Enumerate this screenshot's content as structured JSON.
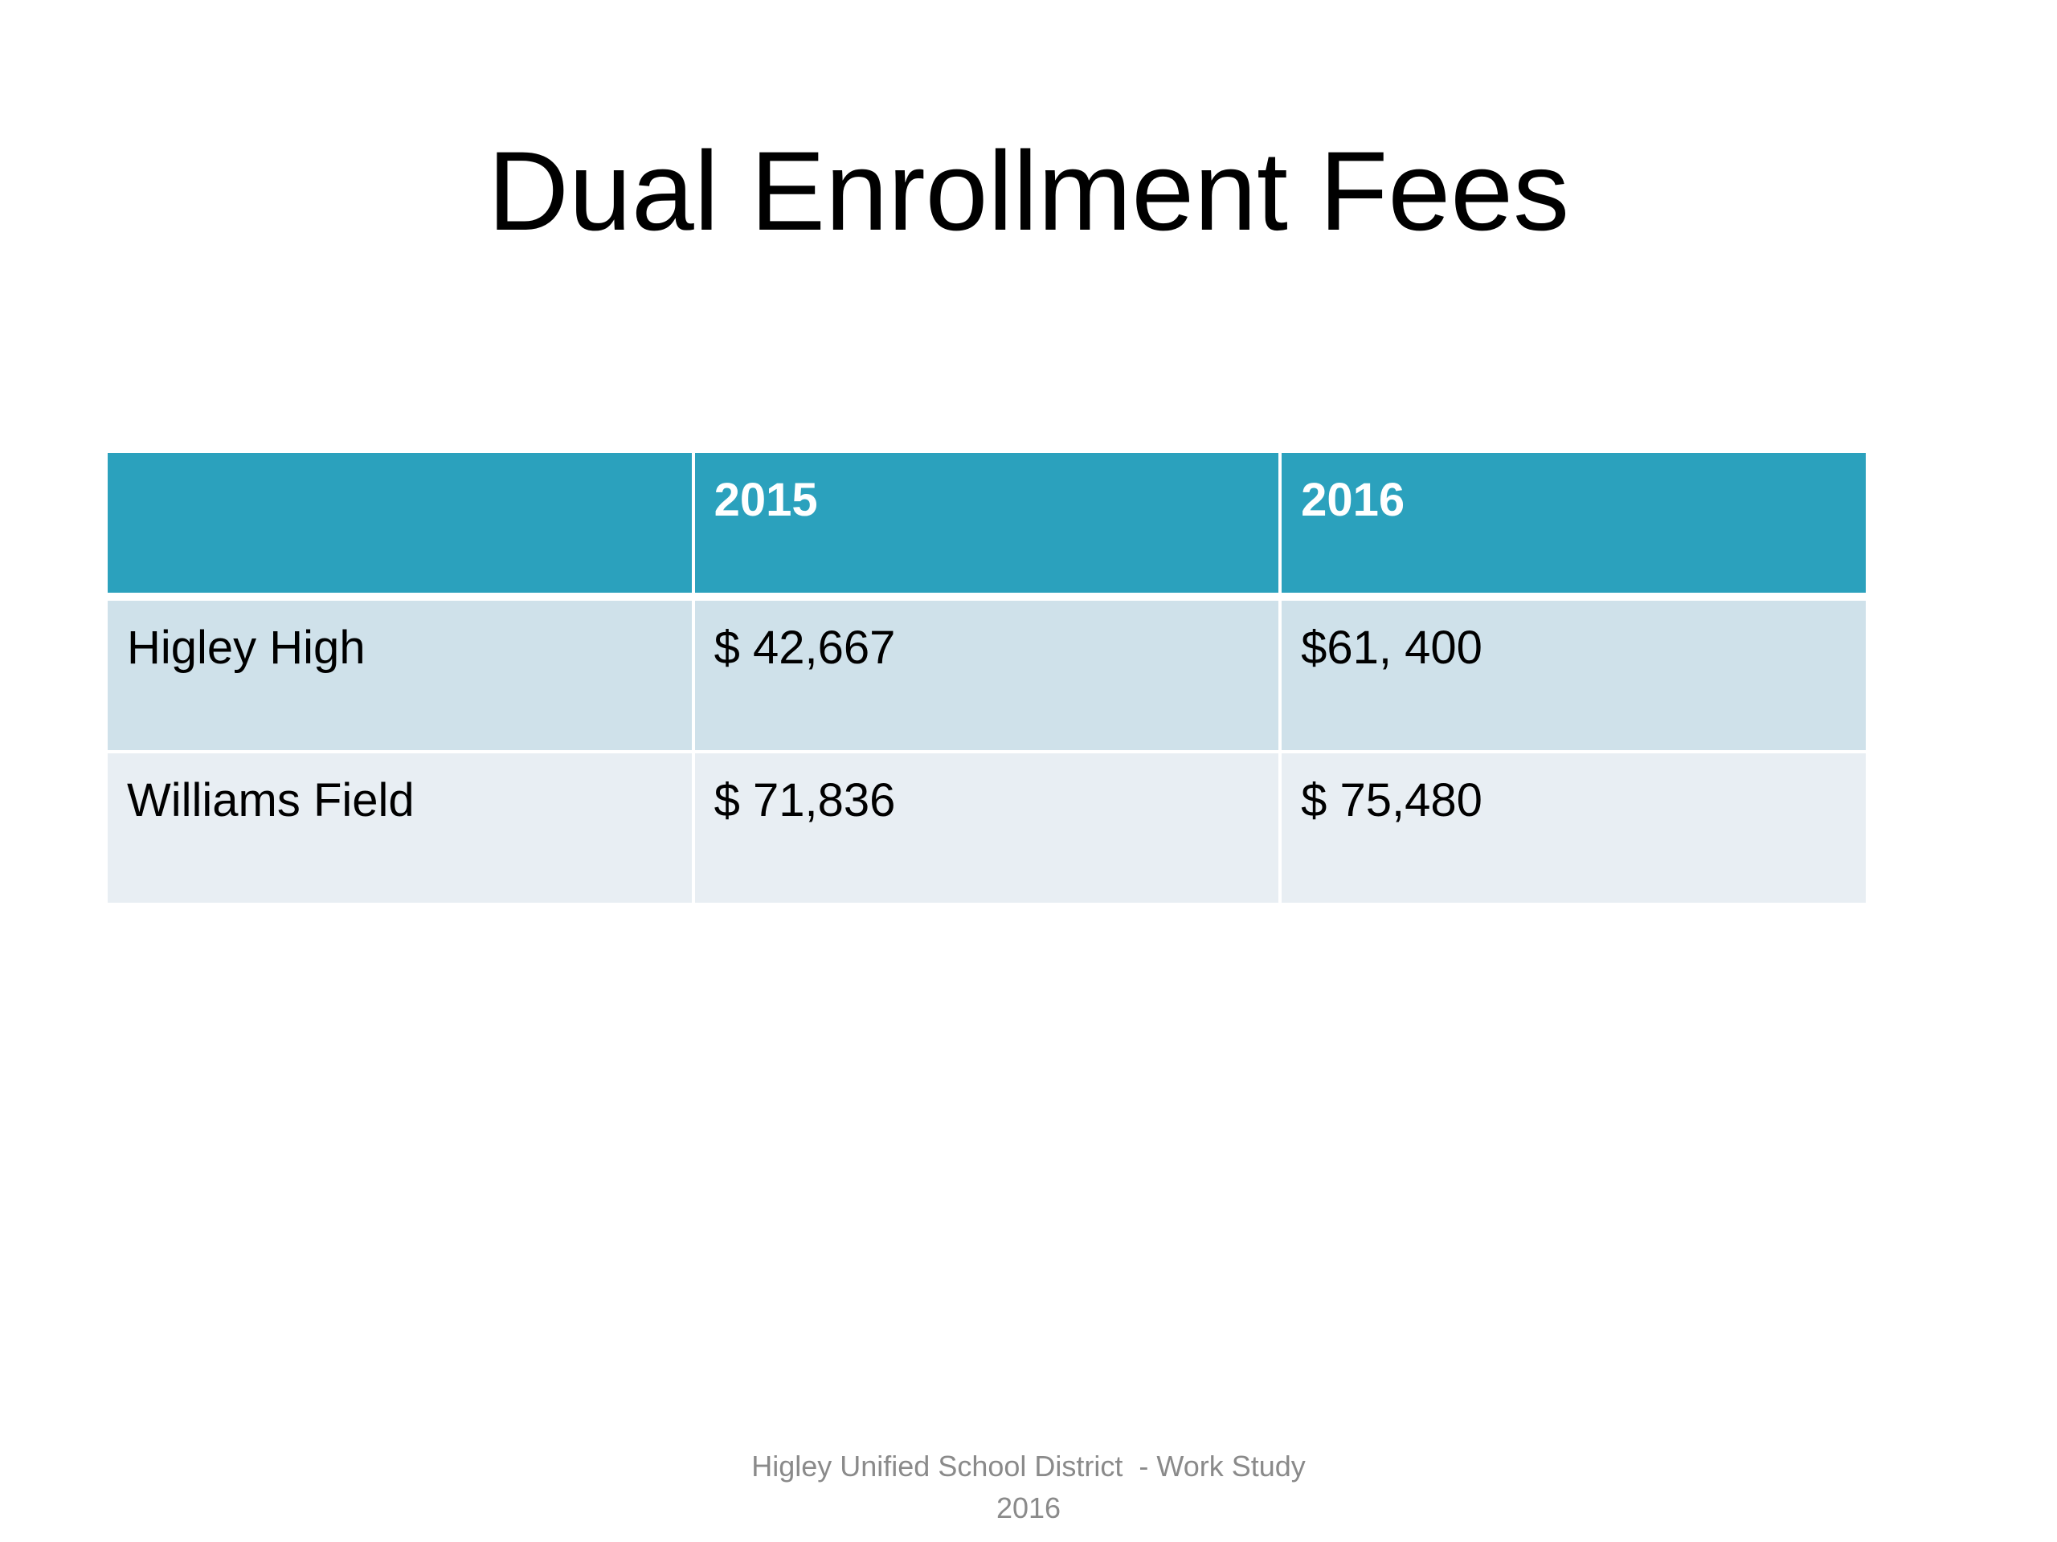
{
  "slide": {
    "title": "Dual Enrollment Fees"
  },
  "table": {
    "columns": [
      "",
      "2015",
      "2016"
    ],
    "rows": [
      {
        "label": "Higley High",
        "values": [
          "$ 42,667",
          "$61, 400"
        ]
      },
      {
        "label": "Williams Field",
        "values": [
          "$ 71,836",
          "$ 75,480"
        ]
      }
    ]
  },
  "footer": {
    "line1": "Higley Unified School District  - Work Study",
    "line2": "2016"
  },
  "colors": {
    "header_bg": "#2ba1bd",
    "row_odd_bg": "#cfe1ea",
    "row_even_bg": "#e8eef3",
    "footer_text": "#8a8a8a"
  }
}
